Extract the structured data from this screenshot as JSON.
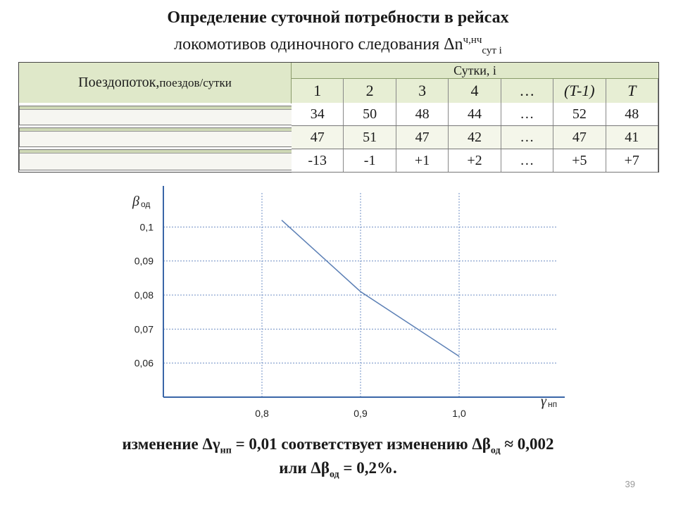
{
  "title": {
    "line1": "Определение суточной потребности в рейсах",
    "line2_text": "локомотивов одиночного следования Δn",
    "line2_sup": "ч,нч",
    "line2_sub": "сут i"
  },
  "table": {
    "left_header_main": "Поездопоток,",
    "left_header_small": " поездов/сутки",
    "days_label": "Сутки, i",
    "day_columns": [
      "1",
      "2",
      "3",
      "4",
      "…",
      "(T-1)",
      "T"
    ],
    "rows": [
      [
        "34",
        "50",
        "48",
        "44",
        "…",
        "52",
        "48"
      ],
      [
        "47",
        "51",
        "47",
        "42",
        "…",
        "47",
        "41"
      ],
      [
        "-13",
        "-1",
        "+1",
        "+2",
        "…",
        "+5",
        "+7"
      ]
    ]
  },
  "chart_data": {
    "type": "line",
    "ylabel": "β",
    "ylabel_sub": "од",
    "xlabel": "γ",
    "xlabel_sub": "нп",
    "xlim": [
      0.7,
      1.1
    ],
    "ylim": [
      0.05,
      0.11
    ],
    "x_ticks": [
      0.8,
      0.9,
      1.0
    ],
    "x_tick_labels": [
      "0,8",
      "0,9",
      "1,0"
    ],
    "y_ticks": [
      0.06,
      0.07,
      0.08,
      0.09,
      0.1
    ],
    "y_tick_labels": [
      "0,06",
      "0,07",
      "0,08",
      "0,09",
      "0,1"
    ],
    "grid": true,
    "series": [
      {
        "x": [
          0.82,
          0.9,
          1.0
        ],
        "y": [
          0.102,
          0.081,
          0.062
        ]
      }
    ],
    "colors": {
      "line": "#5b7fb5",
      "grid": "#6f8fc4",
      "axis": "#3a66a8"
    }
  },
  "caption": {
    "line1": "изменение Δγ",
    "line1_sub": "нп",
    "line1_rest": " = 0,01 соответствует изменению Δβ",
    "line1_sub2": "од",
    "line1_end": " ≈ 0,002",
    "line2": "или Δβ",
    "line2_sub": "од",
    "line2_end": " = 0,2%."
  },
  "page_number": "39"
}
